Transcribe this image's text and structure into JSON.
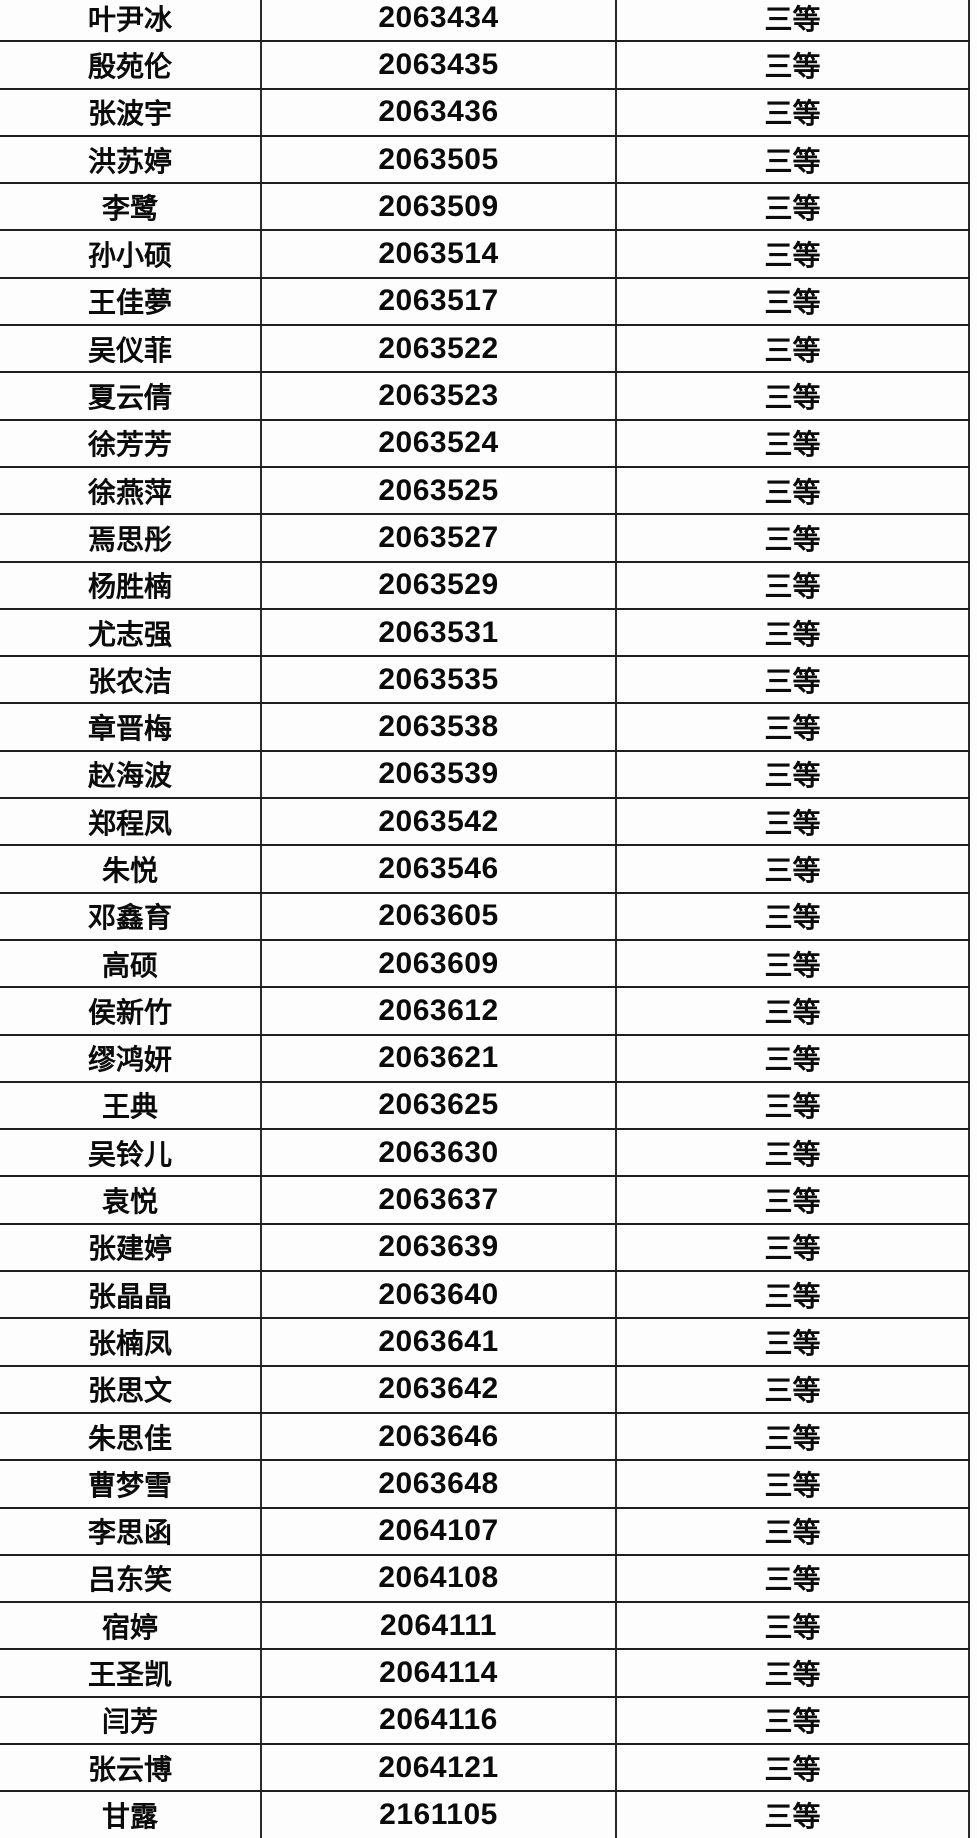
{
  "colors": {
    "background": "#fdfdfd",
    "border": "#1f1f1f",
    "text": "#0b0b0b"
  },
  "table": {
    "grade_value_repeated": "三等",
    "rows": [
      {
        "name": "叶尹冰",
        "id": "2063434",
        "grade": "三等"
      },
      {
        "name": "殷苑伦",
        "id": "2063435",
        "grade": "三等"
      },
      {
        "name": "张波宇",
        "id": "2063436",
        "grade": "三等"
      },
      {
        "name": "洪苏婷",
        "id": "2063505",
        "grade": "三等"
      },
      {
        "name": "李鹭",
        "id": "2063509",
        "grade": "三等"
      },
      {
        "name": "孙小硕",
        "id": "2063514",
        "grade": "三等"
      },
      {
        "name": "王佳夢",
        "id": "2063517",
        "grade": "三等"
      },
      {
        "name": "吴仪菲",
        "id": "2063522",
        "grade": "三等"
      },
      {
        "name": "夏云倩",
        "id": "2063523",
        "grade": "三等"
      },
      {
        "name": "徐芳芳",
        "id": "2063524",
        "grade": "三等"
      },
      {
        "name": "徐燕萍",
        "id": "2063525",
        "grade": "三等"
      },
      {
        "name": "焉思彤",
        "id": "2063527",
        "grade": "三等"
      },
      {
        "name": "杨胜楠",
        "id": "2063529",
        "grade": "三等"
      },
      {
        "name": "尤志强",
        "id": "2063531",
        "grade": "三等"
      },
      {
        "name": "张农洁",
        "id": "2063535",
        "grade": "三等"
      },
      {
        "name": "章晋梅",
        "id": "2063538",
        "grade": "三等"
      },
      {
        "name": "赵海波",
        "id": "2063539",
        "grade": "三等"
      },
      {
        "name": "郑程凤",
        "id": "2063542",
        "grade": "三等"
      },
      {
        "name": "朱悦",
        "id": "2063546",
        "grade": "三等"
      },
      {
        "name": "邓鑫育",
        "id": "2063605",
        "grade": "三等"
      },
      {
        "name": "高硕",
        "id": "2063609",
        "grade": "三等"
      },
      {
        "name": "侯新竹",
        "id": "2063612",
        "grade": "三等"
      },
      {
        "name": "缪鸿妍",
        "id": "2063621",
        "grade": "三等"
      },
      {
        "name": "王典",
        "id": "2063625",
        "grade": "三等"
      },
      {
        "name": "吴铃儿",
        "id": "2063630",
        "grade": "三等"
      },
      {
        "name": "袁悦",
        "id": "2063637",
        "grade": "三等"
      },
      {
        "name": "张建婷",
        "id": "2063639",
        "grade": "三等"
      },
      {
        "name": "张晶晶",
        "id": "2063640",
        "grade": "三等"
      },
      {
        "name": "张楠凤",
        "id": "2063641",
        "grade": "三等"
      },
      {
        "name": "张思文",
        "id": "2063642",
        "grade": "三等"
      },
      {
        "name": "朱思佳",
        "id": "2063646",
        "grade": "三等"
      },
      {
        "name": "曹梦雪",
        "id": "2063648",
        "grade": "三等"
      },
      {
        "name": "李思函",
        "id": "2064107",
        "grade": "三等"
      },
      {
        "name": "吕东笑",
        "id": "2064108",
        "grade": "三等"
      },
      {
        "name": "宿婷",
        "id": "2064111",
        "grade": "三等"
      },
      {
        "name": "王圣凯",
        "id": "2064114",
        "grade": "三等"
      },
      {
        "name": "闫芳",
        "id": "2064116",
        "grade": "三等"
      },
      {
        "name": "张云博",
        "id": "2064121",
        "grade": "三等"
      },
      {
        "name": "甘露",
        "id": "2161105",
        "grade": "三等"
      }
    ]
  }
}
